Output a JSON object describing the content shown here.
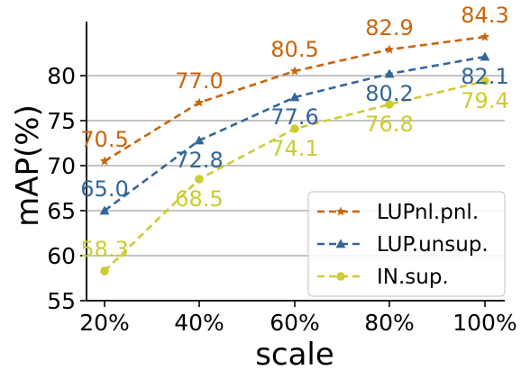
{
  "chart_data": {
    "type": "line",
    "title": "",
    "xlabel": "scale",
    "ylabel": "mAP(%)",
    "categories": [
      "20%",
      "40%",
      "60%",
      "80%",
      "100%"
    ],
    "ylim": [
      55,
      86
    ],
    "yticks": [
      55,
      60,
      65,
      70,
      75,
      80
    ],
    "grid": "horizontal",
    "legend_position": "lower-right",
    "series": [
      {
        "name": "LUPnl.pnl.",
        "color": "#C8650C",
        "marker": "star",
        "values": [
          70.5,
          77.0,
          80.5,
          82.9,
          84.3
        ],
        "labels": [
          "70.5",
          "77.0",
          "80.5",
          "82.9",
          "84.3"
        ]
      },
      {
        "name": "LUP.unsup.",
        "color": "#336699",
        "marker": "triangle",
        "values": [
          65.0,
          72.8,
          77.6,
          80.2,
          82.1
        ],
        "labels": [
          "65.0",
          "72.8",
          "77.6",
          "80.2",
          "82.1"
        ]
      },
      {
        "name": "IN.sup.",
        "color": "#CCCC33",
        "marker": "circle",
        "values": [
          58.3,
          68.5,
          74.1,
          76.8,
          79.4
        ],
        "labels": [
          "58.3",
          "68.5",
          "74.1",
          "76.8",
          "79.4"
        ]
      }
    ]
  }
}
